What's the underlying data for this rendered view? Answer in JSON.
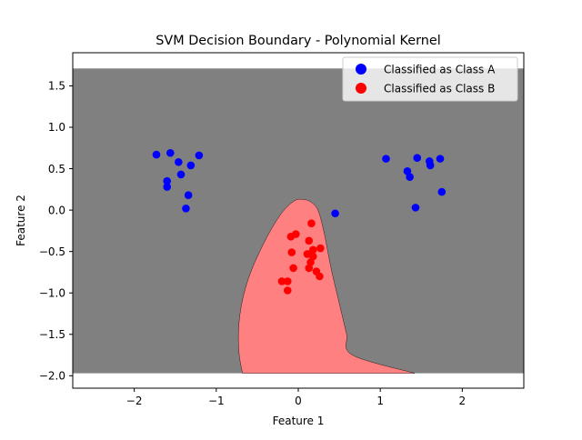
{
  "chart_data": {
    "type": "scatter",
    "title": "SVM Decision Boundary - Polynomial Kernel",
    "xlabel": "Feature 1",
    "ylabel": "Feature 2",
    "xlim": [
      -2.75,
      2.75
    ],
    "ylim": [
      -2.15,
      1.9
    ],
    "xticks": [
      -2,
      -1,
      0,
      1,
      2
    ],
    "xtick_labels": [
      "−2",
      "−1",
      "0",
      "1",
      "2"
    ],
    "yticks": [
      -2.0,
      -1.5,
      -1.0,
      -0.5,
      0.0,
      0.5,
      1.0,
      1.5
    ],
    "ytick_labels": [
      "−2.0",
      "−1.5",
      "−1.0",
      "−0.5",
      "0.0",
      "0.5",
      "1.0",
      "1.5"
    ],
    "grid": false,
    "legend": {
      "placement": "top-right"
    },
    "decision_region": {
      "extent_x": [
        -2.75,
        2.75
      ],
      "extent_y": [
        -1.97,
        1.71
      ],
      "class_a_color": "#808080",
      "class_b_color": "#ff8080",
      "class_b_boundary": [
        [
          -0.68,
          -1.97
        ],
        [
          -0.72,
          -1.75
        ],
        [
          -0.73,
          -1.5
        ],
        [
          -0.71,
          -1.25
        ],
        [
          -0.66,
          -1.0
        ],
        [
          -0.58,
          -0.75
        ],
        [
          -0.47,
          -0.5
        ],
        [
          -0.34,
          -0.25
        ],
        [
          -0.19,
          -0.02
        ],
        [
          -0.05,
          0.11
        ],
        [
          0.05,
          0.13
        ],
        [
          0.15,
          0.1
        ],
        [
          0.24,
          0.0
        ],
        [
          0.31,
          -0.25
        ],
        [
          0.36,
          -0.5
        ],
        [
          0.41,
          -0.75
        ],
        [
          0.47,
          -1.0
        ],
        [
          0.53,
          -1.25
        ],
        [
          0.59,
          -1.5
        ],
        [
          0.66,
          -1.75
        ],
        [
          1.42,
          -1.97
        ]
      ]
    },
    "series": [
      {
        "name": "Classified as Class A",
        "color": "#0000ff",
        "points": [
          [
            -1.73,
            0.67
          ],
          [
            -1.56,
            0.69
          ],
          [
            -1.46,
            0.58
          ],
          [
            -1.31,
            0.54
          ],
          [
            -1.21,
            0.66
          ],
          [
            -1.43,
            0.43
          ],
          [
            -1.6,
            0.35
          ],
          [
            -1.6,
            0.28
          ],
          [
            -1.34,
            0.18
          ],
          [
            -1.37,
            0.02
          ],
          [
            0.45,
            -0.04
          ],
          [
            1.07,
            0.62
          ],
          [
            1.33,
            0.47
          ],
          [
            1.36,
            0.4
          ],
          [
            1.45,
            0.63
          ],
          [
            1.6,
            0.59
          ],
          [
            1.61,
            0.54
          ],
          [
            1.73,
            0.62
          ],
          [
            1.75,
            0.22
          ],
          [
            1.43,
            0.03
          ]
        ]
      },
      {
        "name": "Classified as Class B",
        "color": "#ff0000",
        "points": [
          [
            0.16,
            -0.16
          ],
          [
            -0.03,
            -0.29
          ],
          [
            -0.09,
            -0.32
          ],
          [
            0.13,
            -0.37
          ],
          [
            -0.08,
            -0.51
          ],
          [
            0.11,
            -0.53
          ],
          [
            0.18,
            -0.48
          ],
          [
            0.27,
            -0.46
          ],
          [
            0.18,
            -0.56
          ],
          [
            0.15,
            -0.63
          ],
          [
            -0.06,
            -0.7
          ],
          [
            0.13,
            -0.7
          ],
          [
            0.22,
            -0.74
          ],
          [
            0.26,
            -0.8
          ],
          [
            -0.2,
            -0.86
          ],
          [
            -0.13,
            -0.86
          ],
          [
            -0.13,
            -0.97
          ]
        ]
      }
    ]
  }
}
